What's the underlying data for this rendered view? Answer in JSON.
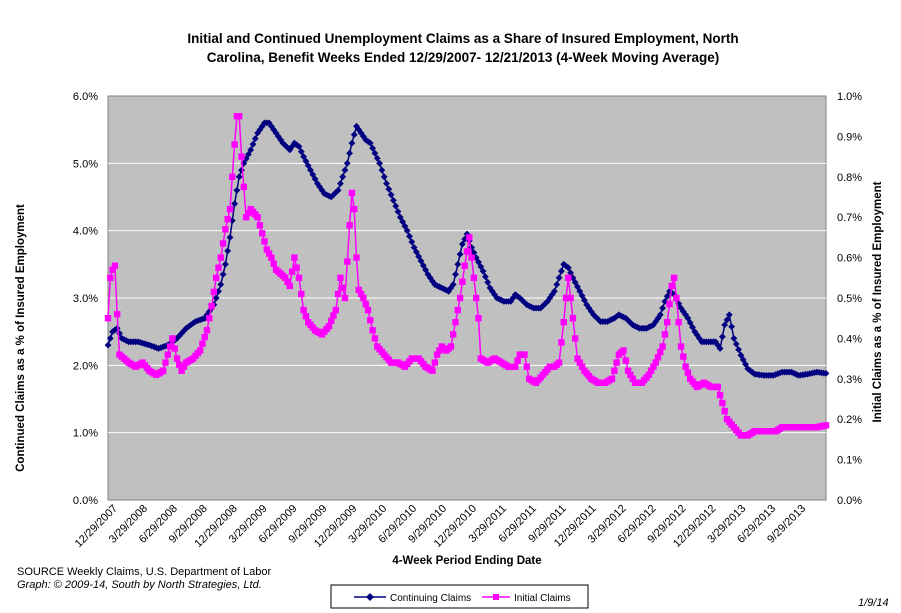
{
  "chart_data": {
    "type": "line",
    "title_line1": "Initial and Continued Unemployment Claims as a Share of Insured Employment, North",
    "title_line2": "Carolina, Benefit Weeks Ended 12/29/2007- 12/21/2013 (4-Week Moving Average)",
    "xlabel": "4-Week Period Ending Date",
    "ylabel_left": "Continued Claims as a % of Insured Employment",
    "ylabel_right": "Initial Claims as a % of Insured Employment",
    "x_tick_labels": [
      "12/29/2007",
      "3/29/2008",
      "6/29/2008",
      "9/29/2008",
      "12/29/2008",
      "3/29/2009",
      "6/29/2009",
      "9/29/2009",
      "12/29/2009",
      "3/29/2010",
      "6/29/2010",
      "9/29/2010",
      "12/29/2010",
      "3/29/2011",
      "6/29/2011",
      "9/29/2011",
      "12/29/2011",
      "3/29/2012",
      "6/29/2012",
      "9/29/2012",
      "12/29/2012",
      "3/29/2013",
      "6/29/2013",
      "9/29/2013"
    ],
    "y_left_ticks": [
      "0.0%",
      "1.0%",
      "2.0%",
      "3.0%",
      "4.0%",
      "5.0%",
      "6.0%"
    ],
    "y_right_ticks": [
      "0.0%",
      "0.1%",
      "0.2%",
      "0.3%",
      "0.4%",
      "0.5%",
      "0.6%",
      "0.7%",
      "0.8%",
      "0.9%",
      "1.0%"
    ],
    "ylim_left": [
      0,
      6
    ],
    "ylim_right": [
      0,
      1
    ],
    "x_range_weeks": [
      0,
      312
    ],
    "background": "#c0c0c0",
    "grid": true,
    "legend_placement": "bottom",
    "series": [
      {
        "name": "Continuing Claims",
        "axis": "left",
        "color": "#000080",
        "marker": "diamond",
        "knots": [
          [
            0,
            2.3
          ],
          [
            2,
            2.5
          ],
          [
            4,
            2.55
          ],
          [
            6,
            2.4
          ],
          [
            9,
            2.35
          ],
          [
            13,
            2.35
          ],
          [
            18,
            2.3
          ],
          [
            22,
            2.25
          ],
          [
            26,
            2.3
          ],
          [
            30,
            2.4
          ],
          [
            34,
            2.55
          ],
          [
            38,
            2.65
          ],
          [
            42,
            2.7
          ],
          [
            46,
            2.9
          ],
          [
            49,
            3.2
          ],
          [
            51,
            3.5
          ],
          [
            53,
            3.9
          ],
          [
            55,
            4.4
          ],
          [
            57,
            4.8
          ],
          [
            59,
            5.0
          ],
          [
            62,
            5.2
          ],
          [
            65,
            5.45
          ],
          [
            68,
            5.6
          ],
          [
            70,
            5.6
          ],
          [
            73,
            5.45
          ],
          [
            76,
            5.3
          ],
          [
            79,
            5.2
          ],
          [
            81,
            5.3
          ],
          [
            83,
            5.25
          ],
          [
            85,
            5.1
          ],
          [
            88,
            4.9
          ],
          [
            91,
            4.7
          ],
          [
            94,
            4.55
          ],
          [
            97,
            4.5
          ],
          [
            100,
            4.6
          ],
          [
            102,
            4.8
          ],
          [
            104,
            5.0
          ],
          [
            106,
            5.3
          ],
          [
            108,
            5.55
          ],
          [
            110,
            5.45
          ],
          [
            112,
            5.35
          ],
          [
            114,
            5.3
          ],
          [
            116,
            5.15
          ],
          [
            118,
            5.0
          ],
          [
            121,
            4.7
          ],
          [
            124,
            4.45
          ],
          [
            127,
            4.2
          ],
          [
            130,
            4.0
          ],
          [
            133,
            3.75
          ],
          [
            136,
            3.55
          ],
          [
            139,
            3.35
          ],
          [
            142,
            3.2
          ],
          [
            145,
            3.15
          ],
          [
            148,
            3.1
          ],
          [
            150,
            3.2
          ],
          [
            152,
            3.5
          ],
          [
            154,
            3.8
          ],
          [
            156,
            3.95
          ],
          [
            158,
            3.75
          ],
          [
            160,
            3.6
          ],
          [
            163,
            3.4
          ],
          [
            166,
            3.15
          ],
          [
            169,
            3.0
          ],
          [
            172,
            2.95
          ],
          [
            175,
            2.95
          ],
          [
            177,
            3.05
          ],
          [
            179,
            3.0
          ],
          [
            182,
            2.9
          ],
          [
            185,
            2.85
          ],
          [
            188,
            2.85
          ],
          [
            191,
            2.95
          ],
          [
            194,
            3.1
          ],
          [
            196,
            3.3
          ],
          [
            198,
            3.5
          ],
          [
            200,
            3.45
          ],
          [
            202,
            3.3
          ],
          [
            205,
            3.1
          ],
          [
            208,
            2.9
          ],
          [
            211,
            2.75
          ],
          [
            214,
            2.65
          ],
          [
            217,
            2.65
          ],
          [
            220,
            2.7
          ],
          [
            222,
            2.75
          ],
          [
            225,
            2.7
          ],
          [
            228,
            2.6
          ],
          [
            231,
            2.55
          ],
          [
            234,
            2.55
          ],
          [
            237,
            2.6
          ],
          [
            240,
            2.75
          ],
          [
            242,
            2.95
          ],
          [
            244,
            3.1
          ],
          [
            246,
            3.05
          ],
          [
            249,
            2.85
          ],
          [
            252,
            2.7
          ],
          [
            255,
            2.5
          ],
          [
            258,
            2.35
          ],
          [
            261,
            2.35
          ],
          [
            264,
            2.35
          ],
          [
            266,
            2.25
          ],
          [
            268,
            2.6
          ],
          [
            270,
            2.75
          ],
          [
            272,
            2.4
          ],
          [
            275,
            2.15
          ],
          [
            278,
            1.95
          ],
          [
            281,
            1.87
          ],
          [
            285,
            1.85
          ],
          [
            289,
            1.85
          ],
          [
            293,
            1.9
          ],
          [
            297,
            1.9
          ],
          [
            300,
            1.85
          ],
          [
            304,
            1.87
          ],
          [
            308,
            1.9
          ],
          [
            312,
            1.88
          ]
        ]
      },
      {
        "name": "Initial Claims",
        "axis": "right",
        "color": "#ff00ff",
        "marker": "square",
        "knots": [
          [
            0,
            0.45
          ],
          [
            1,
            0.55
          ],
          [
            2,
            0.57
          ],
          [
            3,
            0.58
          ],
          [
            4,
            0.46
          ],
          [
            5,
            0.36
          ],
          [
            7,
            0.35
          ],
          [
            9,
            0.34
          ],
          [
            12,
            0.33
          ],
          [
            15,
            0.34
          ],
          [
            18,
            0.32
          ],
          [
            21,
            0.31
          ],
          [
            24,
            0.32
          ],
          [
            26,
            0.36
          ],
          [
            28,
            0.4
          ],
          [
            30,
            0.35
          ],
          [
            32,
            0.32
          ],
          [
            34,
            0.34
          ],
          [
            37,
            0.35
          ],
          [
            40,
            0.37
          ],
          [
            43,
            0.42
          ],
          [
            45,
            0.48
          ],
          [
            47,
            0.55
          ],
          [
            49,
            0.6
          ],
          [
            51,
            0.67
          ],
          [
            53,
            0.72
          ],
          [
            55,
            0.88
          ],
          [
            56,
            0.95
          ],
          [
            57,
            0.95
          ],
          [
            58,
            0.85
          ],
          [
            60,
            0.7
          ],
          [
            62,
            0.72
          ],
          [
            65,
            0.7
          ],
          [
            67,
            0.66
          ],
          [
            69,
            0.62
          ],
          [
            71,
            0.6
          ],
          [
            73,
            0.57
          ],
          [
            75,
            0.56
          ],
          [
            77,
            0.55
          ],
          [
            79,
            0.53
          ],
          [
            81,
            0.6
          ],
          [
            83,
            0.55
          ],
          [
            85,
            0.47
          ],
          [
            87,
            0.44
          ],
          [
            90,
            0.42
          ],
          [
            93,
            0.41
          ],
          [
            96,
            0.43
          ],
          [
            99,
            0.47
          ],
          [
            101,
            0.55
          ],
          [
            103,
            0.5
          ],
          [
            105,
            0.68
          ],
          [
            106,
            0.76
          ],
          [
            107,
            0.72
          ],
          [
            108,
            0.6
          ],
          [
            109,
            0.52
          ],
          [
            111,
            0.5
          ],
          [
            113,
            0.47
          ],
          [
            115,
            0.42
          ],
          [
            117,
            0.38
          ],
          [
            120,
            0.36
          ],
          [
            123,
            0.34
          ],
          [
            126,
            0.34
          ],
          [
            129,
            0.33
          ],
          [
            132,
            0.35
          ],
          [
            135,
            0.35
          ],
          [
            138,
            0.33
          ],
          [
            141,
            0.32
          ],
          [
            143,
            0.36
          ],
          [
            145,
            0.38
          ],
          [
            147,
            0.37
          ],
          [
            149,
            0.38
          ],
          [
            151,
            0.44
          ],
          [
            153,
            0.5
          ],
          [
            155,
            0.58
          ],
          [
            157,
            0.65
          ],
          [
            159,
            0.55
          ],
          [
            161,
            0.45
          ],
          [
            162,
            0.35
          ],
          [
            165,
            0.34
          ],
          [
            168,
            0.35
          ],
          [
            171,
            0.34
          ],
          [
            174,
            0.33
          ],
          [
            177,
            0.33
          ],
          [
            179,
            0.36
          ],
          [
            181,
            0.36
          ],
          [
            183,
            0.3
          ],
          [
            186,
            0.29
          ],
          [
            189,
            0.31
          ],
          [
            192,
            0.33
          ],
          [
            194,
            0.33
          ],
          [
            196,
            0.34
          ],
          [
            198,
            0.44
          ],
          [
            199,
            0.5
          ],
          [
            200,
            0.55
          ],
          [
            202,
            0.45
          ],
          [
            204,
            0.35
          ],
          [
            207,
            0.32
          ],
          [
            210,
            0.3
          ],
          [
            213,
            0.29
          ],
          [
            216,
            0.29
          ],
          [
            219,
            0.3
          ],
          [
            222,
            0.36
          ],
          [
            224,
            0.37
          ],
          [
            226,
            0.32
          ],
          [
            229,
            0.29
          ],
          [
            232,
            0.29
          ],
          [
            235,
            0.31
          ],
          [
            238,
            0.34
          ],
          [
            241,
            0.38
          ],
          [
            243,
            0.44
          ],
          [
            245,
            0.53
          ],
          [
            246,
            0.55
          ],
          [
            247,
            0.5
          ],
          [
            249,
            0.38
          ],
          [
            251,
            0.33
          ],
          [
            253,
            0.3
          ],
          [
            256,
            0.28
          ],
          [
            259,
            0.29
          ],
          [
            262,
            0.28
          ],
          [
            265,
            0.28
          ],
          [
            267,
            0.24
          ],
          [
            269,
            0.2
          ],
          [
            272,
            0.18
          ],
          [
            275,
            0.16
          ],
          [
            278,
            0.16
          ],
          [
            281,
            0.17
          ],
          [
            284,
            0.17
          ],
          [
            287,
            0.17
          ],
          [
            290,
            0.17
          ],
          [
            293,
            0.18
          ],
          [
            296,
            0.18
          ],
          [
            300,
            0.18
          ],
          [
            304,
            0.18
          ],
          [
            308,
            0.18
          ],
          [
            312,
            0.185
          ]
        ]
      }
    ]
  },
  "footer": {
    "source_line": "SOURCE  Weekly Claims, U.S. Department of Labor",
    "graph_line": "Graph: © 2009-14, South by North Strategies, Ltd.",
    "date_note": "1/9/14"
  }
}
